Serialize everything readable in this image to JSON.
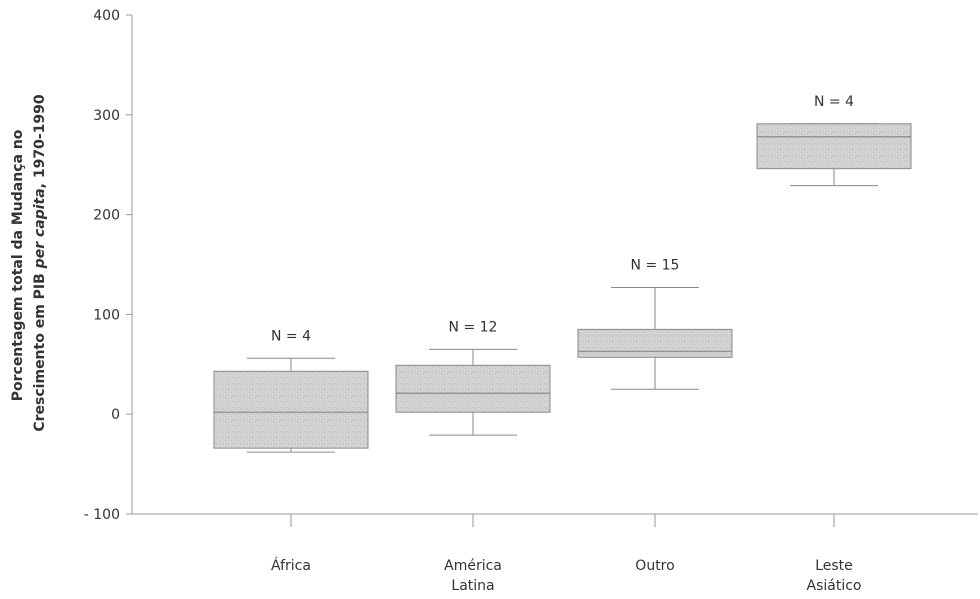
{
  "chart_data": {
    "type": "box",
    "ylabel": {
      "line1": "Porcentagem total da Mudança no",
      "line2_prefix": "Crescimento em PIB ",
      "line2_italic": "per capita",
      "line2_suffix": ", 1970-1990"
    },
    "ylim": [
      -100,
      400
    ],
    "yticks": [
      {
        "value": 400,
        "label": "400"
      },
      {
        "value": 300,
        "label": "300"
      },
      {
        "value": 200,
        "label": "200"
      },
      {
        "value": 100,
        "label": "100"
      },
      {
        "value": 0,
        "label": "0"
      },
      {
        "value": -100,
        "label": "- 100"
      }
    ],
    "grid": false,
    "boxes": [
      {
        "category": [
          "África"
        ],
        "n_label": "N = 4",
        "whisker_low": -38,
        "q1": -34,
        "median": 2,
        "q3": 43,
        "whisker_high": 56
      },
      {
        "category": [
          "América",
          "Latina"
        ],
        "n_label": "N = 12",
        "whisker_low": -21,
        "q1": 2,
        "median": 21,
        "q3": 49,
        "whisker_high": 65
      },
      {
        "category": [
          "Outro"
        ],
        "n_label": "N = 15",
        "whisker_low": 25,
        "q1": 57,
        "median": 63,
        "q3": 85,
        "whisker_high": 127
      },
      {
        "category": [
          "Leste",
          "Asiático"
        ],
        "n_label": "N = 4",
        "whisker_low": 229,
        "q1": 246,
        "median": 278,
        "q3": 291,
        "whisker_high": 291
      }
    ],
    "colors": {
      "box_fill": "#cfcfcf",
      "box_stroke": "#8a8a8a",
      "axis": "#999999"
    }
  }
}
